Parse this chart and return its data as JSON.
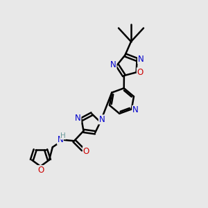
{
  "bg_color": "#e8e8e8",
  "atom_colors": {
    "C": "#000000",
    "N": "#0000cc",
    "O": "#cc0000",
    "H": "#6a9a9a"
  },
  "bond_color": "#000000",
  "bond_width": 1.8,
  "fig_size": [
    3.0,
    3.0
  ],
  "dpi": 100,
  "xlim": [
    0,
    10
  ],
  "ylim": [
    0,
    10
  ],
  "font_size": 8.5,
  "font_size_small": 7.5
}
